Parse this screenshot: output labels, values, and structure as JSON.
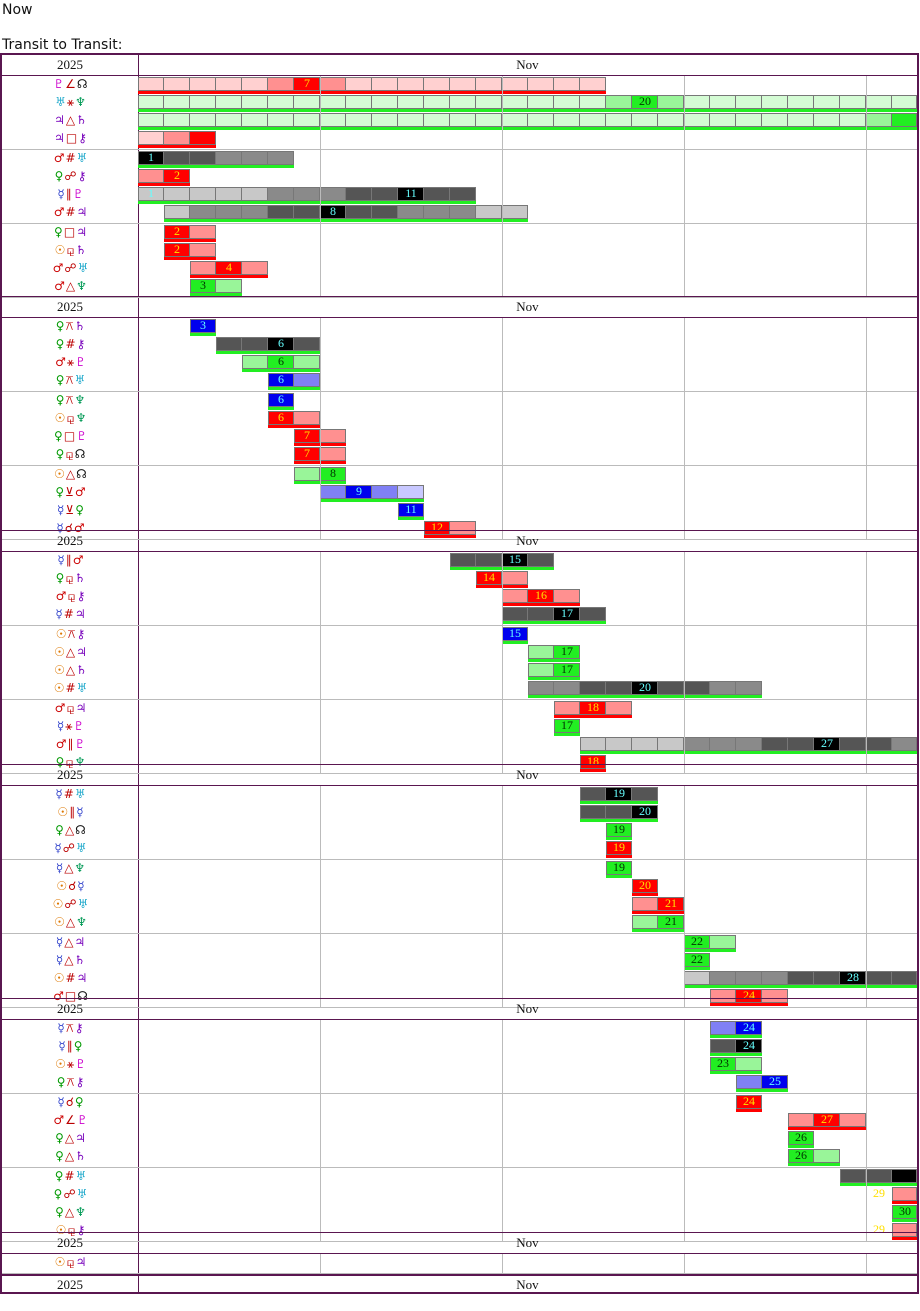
{
  "page": {
    "line1": "Now",
    "line2": "Transit to Transit:"
  },
  "header": {
    "year": "2025",
    "month": "Nov"
  },
  "colors": {
    "frame": "#5a1650",
    "grid": "#bbbbbb",
    "red": "#ff0000",
    "red_light": "#ff9090",
    "red_pale": "#ffd0d0",
    "green": "#22ee22",
    "green_light": "#99f599",
    "green_pale": "#d4fcd4",
    "blue": "#0000ee",
    "blue_light": "#8080f5",
    "blue_pale": "#c8c8ff",
    "black": "#000000",
    "grey_dark": "#555555",
    "grey_mid": "#8a8a8a",
    "grey_light": "#c8c8c8",
    "glyph_pluto": "#cc00cc",
    "glyph_uranus": "#22aacc",
    "glyph_neptune": "#009955",
    "glyph_jupiter": "#7700bb",
    "glyph_saturn": "#7700bb",
    "glyph_mars": "#cc0000",
    "glyph_venus": "#009900",
    "glyph_sun": "#dd7700",
    "glyph_mercury": "#3344cc",
    "glyph_node": "#111111",
    "glyph_chiron": "#7700bb",
    "glyph_aspect": "#bb0000"
  },
  "aspects": [
    {
      "p1": "♇",
      "asp": "∠",
      "p2": "☊",
      "day": 7,
      "theme": "red"
    },
    {
      "p1": "♅",
      "asp": "⚹",
      "p2": "♆",
      "day": 20,
      "theme": "green"
    },
    {
      "p1": "♃",
      "asp": "△",
      "p2": "♄",
      "day": null,
      "theme": "green"
    },
    {
      "p1": "♃",
      "asp": "□",
      "p2": "⚷",
      "day": null,
      "theme": "red"
    },
    {
      "p1": "♂",
      "asp": "#",
      "p2": "♅",
      "day": 1,
      "theme": "grey"
    },
    {
      "p1": "♀",
      "asp": "☍",
      "p2": "⚷",
      "day": 2,
      "theme": "red"
    },
    {
      "p1": "☿",
      "asp": "∥",
      "p2": "♇",
      "day": 11,
      "theme": "grey",
      "sub": 1
    },
    {
      "p1": "♂",
      "asp": "#",
      "p2": "♃",
      "day": 8,
      "theme": "grey"
    },
    {
      "p1": "♀",
      "asp": "□",
      "p2": "♃",
      "day": 2,
      "theme": "red"
    },
    {
      "p1": "☉",
      "asp": "⚼",
      "p2": "♄",
      "day": 2,
      "theme": "red"
    },
    {
      "p1": "♂",
      "asp": "☍",
      "p2": "♅",
      "day": 4,
      "theme": "red"
    },
    {
      "p1": "♂",
      "asp": "△",
      "p2": "♆",
      "day": 3,
      "theme": "green"
    },
    {
      "p1": "♀",
      "asp": "⚻",
      "p2": "♄",
      "day": 3,
      "theme": "blue"
    },
    {
      "p1": "♀",
      "asp": "#",
      "p2": "⚷",
      "day": 6,
      "theme": "grey"
    },
    {
      "p1": "♂",
      "asp": "⚹",
      "p2": "♇",
      "day": 6,
      "theme": "green"
    },
    {
      "p1": "♀",
      "asp": "⚻",
      "p2": "♅",
      "day": 6,
      "theme": "blue"
    },
    {
      "p1": "♀",
      "asp": "⚻",
      "p2": "♆",
      "day": 6,
      "theme": "blue"
    },
    {
      "p1": "☉",
      "asp": "⚼",
      "p2": "♆",
      "day": 6,
      "theme": "red"
    },
    {
      "p1": "♀",
      "asp": "□",
      "p2": "♇",
      "day": 7,
      "theme": "red"
    },
    {
      "p1": "♀",
      "asp": "⚼",
      "p2": "☊",
      "day": 7,
      "theme": "red"
    },
    {
      "p1": "☉",
      "asp": "△",
      "p2": "☊",
      "day": 8,
      "theme": "green"
    },
    {
      "p1": "♀",
      "asp": "⊻",
      "p2": "♂",
      "day": 9,
      "theme": "blue"
    },
    {
      "p1": "☿",
      "asp": "⊻",
      "p2": "♀",
      "day": 11,
      "theme": "blue"
    },
    {
      "p1": "☿",
      "asp": "☌",
      "p2": "♂",
      "day": 12,
      "theme": "red"
    },
    {
      "p1": "☿",
      "asp": "∥",
      "p2": "♂",
      "day": 15,
      "theme": "grey"
    },
    {
      "p1": "♀",
      "asp": "⚼",
      "p2": "♄",
      "day": 14,
      "theme": "red"
    },
    {
      "p1": "♂",
      "asp": "⚼",
      "p2": "⚷",
      "day": 16,
      "theme": "red"
    },
    {
      "p1": "☿",
      "asp": "#",
      "p2": "♃",
      "day": 17,
      "theme": "grey"
    },
    {
      "p1": "☉",
      "asp": "⚻",
      "p2": "⚷",
      "day": 15,
      "theme": "blue"
    },
    {
      "p1": "☉",
      "asp": "△",
      "p2": "♃",
      "day": 17,
      "theme": "green"
    },
    {
      "p1": "☉",
      "asp": "△",
      "p2": "♄",
      "day": 17,
      "theme": "green"
    },
    {
      "p1": "☉",
      "asp": "#",
      "p2": "♅",
      "day": 20,
      "theme": "grey"
    },
    {
      "p1": "♂",
      "asp": "⚼",
      "p2": "♃",
      "day": 18,
      "theme": "red"
    },
    {
      "p1": "☿",
      "asp": "⚹",
      "p2": "♇",
      "day": 17,
      "theme": "green"
    },
    {
      "p1": "♂",
      "asp": "∥",
      "p2": "♇",
      "day": 27,
      "theme": "grey"
    },
    {
      "p1": "♀",
      "asp": "⚼",
      "p2": "♆",
      "day": 18,
      "theme": "red"
    },
    {
      "p1": "☿",
      "asp": "#",
      "p2": "♅",
      "day": 19,
      "theme": "grey"
    },
    {
      "p1": "☉",
      "asp": "∥",
      "p2": "☿",
      "day": 20,
      "theme": "grey"
    },
    {
      "p1": "♀",
      "asp": "△",
      "p2": "☊",
      "day": 19,
      "theme": "green"
    },
    {
      "p1": "☿",
      "asp": "☍",
      "p2": "♅",
      "day": 19,
      "theme": "red"
    },
    {
      "p1": "☿",
      "asp": "△",
      "p2": "♆",
      "day": 19,
      "theme": "green"
    },
    {
      "p1": "☉",
      "asp": "☌",
      "p2": "☿",
      "day": 20,
      "theme": "red"
    },
    {
      "p1": "☉",
      "asp": "☍",
      "p2": "♅",
      "day": 21,
      "theme": "red"
    },
    {
      "p1": "☉",
      "asp": "△",
      "p2": "♆",
      "day": 21,
      "theme": "green"
    },
    {
      "p1": "☿",
      "asp": "△",
      "p2": "♃",
      "day": 22,
      "theme": "green"
    },
    {
      "p1": "☿",
      "asp": "△",
      "p2": "♄",
      "day": 22,
      "theme": "green"
    },
    {
      "p1": "☉",
      "asp": "#",
      "p2": "♃",
      "day": 28,
      "theme": "grey"
    },
    {
      "p1": "♂",
      "asp": "□",
      "p2": "☊",
      "day": 24,
      "theme": "red"
    },
    {
      "p1": "☿",
      "asp": "⚻",
      "p2": "⚷",
      "day": 24,
      "theme": "blue"
    },
    {
      "p1": "☿",
      "asp": "∥",
      "p2": "♀",
      "day": 24,
      "theme": "grey"
    },
    {
      "p1": "☉",
      "asp": "⚹",
      "p2": "♇",
      "day": 23,
      "theme": "green"
    },
    {
      "p1": "♀",
      "asp": "⚻",
      "p2": "⚷",
      "day": 25,
      "theme": "blue"
    },
    {
      "p1": "☿",
      "asp": "☌",
      "p2": "♀",
      "day": 24,
      "theme": "red"
    },
    {
      "p1": "♂",
      "asp": "∠",
      "p2": "♇",
      "day": 27,
      "theme": "red"
    },
    {
      "p1": "♀",
      "asp": "△",
      "p2": "♃",
      "day": 26,
      "theme": "green"
    },
    {
      "p1": "♀",
      "asp": "△",
      "p2": "♄",
      "day": 26,
      "theme": "green"
    },
    {
      "p1": "♀",
      "asp": "#",
      "p2": "♅",
      "day": null,
      "theme": "grey"
    },
    {
      "p1": "♀",
      "asp": "☍",
      "p2": "♅",
      "day": 29,
      "theme": "red"
    },
    {
      "p1": "♀",
      "asp": "△",
      "p2": "♆",
      "day": 30,
      "theme": "green"
    },
    {
      "p1": "☉",
      "asp": "⚼",
      "p2": "⚷",
      "day": 29,
      "theme": "red"
    },
    {
      "p1": "☉",
      "asp": "⚼",
      "p2": "♃",
      "day": null,
      "theme": "red"
    }
  ]
}
